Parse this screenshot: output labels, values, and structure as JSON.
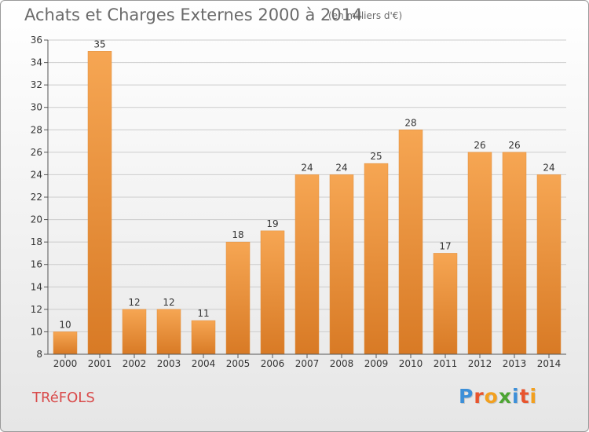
{
  "header": {
    "title": "Achats et Charges Externes 2000 à 2014",
    "unit": "(en milliers d'€)"
  },
  "footer": {
    "commune": "TRéFOLS",
    "logo_letters": [
      "P",
      "r",
      "o",
      "x",
      "i",
      "t",
      "i"
    ],
    "logo_colors": [
      "#3c8fd8",
      "#e8542d",
      "#f2a01f",
      "#4da533",
      "#3c8fd8",
      "#e8542d",
      "#f2a01f"
    ]
  },
  "colors": {
    "bar_top": "#f6a653",
    "bar_bottom": "#d87a25",
    "axis": "#555555",
    "grid": "#cccccc",
    "text": "#333333"
  },
  "chart_data": {
    "type": "bar",
    "categories": [
      "2000",
      "2001",
      "2002",
      "2003",
      "2004",
      "2005",
      "2006",
      "2007",
      "2008",
      "2009",
      "2010",
      "2011",
      "2012",
      "2013",
      "2014"
    ],
    "values": [
      10,
      35,
      12,
      12,
      11,
      18,
      19,
      24,
      24,
      25,
      28,
      17,
      26,
      26,
      24
    ],
    "title": "Achats et Charges Externes 2000 à 2014",
    "xlabel": "",
    "ylabel": "",
    "ylim": [
      8,
      36
    ],
    "yticks": [
      8,
      10,
      12,
      14,
      16,
      18,
      20,
      22,
      24,
      26,
      28,
      30,
      32,
      34,
      36
    ],
    "grid": true
  }
}
